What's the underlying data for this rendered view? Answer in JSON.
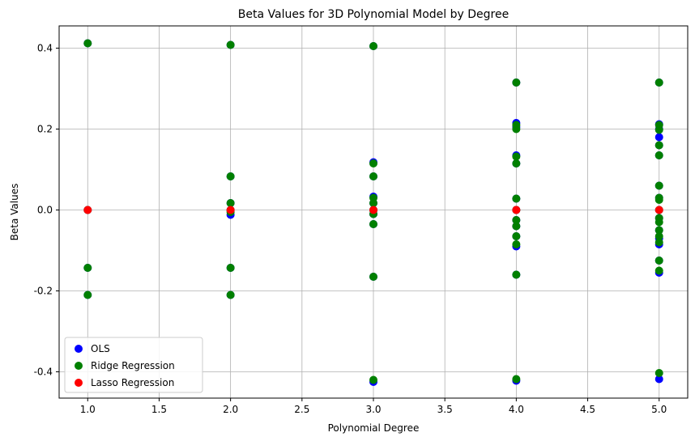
{
  "chart_data": {
    "type": "scatter",
    "title": "Beta Values for 3D Polynomial Model by Degree",
    "xlabel": "Polynomial Degree",
    "ylabel": "Beta Values",
    "xlim": [
      0.8,
      5.2
    ],
    "ylim": [
      -0.465,
      0.455
    ],
    "xticks": [
      "1.0",
      "1.5",
      "2.0",
      "2.5",
      "3.0",
      "3.5",
      "4.0",
      "4.5",
      "5.0"
    ],
    "yticks": [
      "-0.4",
      "-0.2",
      "0.0",
      "0.2",
      "0.4"
    ],
    "grid": true,
    "legend_position": "lower-left",
    "series": [
      {
        "name": "OLS",
        "color": "#0000ff",
        "points": [
          [
            1,
            0.412
          ],
          [
            1,
            0.0
          ],
          [
            1,
            -0.143
          ],
          [
            1,
            -0.21
          ],
          [
            2,
            0.408
          ],
          [
            2,
            0.083
          ],
          [
            2,
            0.017
          ],
          [
            2,
            0.0
          ],
          [
            2,
            -0.012
          ],
          [
            2,
            -0.143
          ],
          [
            2,
            -0.21
          ],
          [
            3,
            0.405
          ],
          [
            3,
            0.118
          ],
          [
            3,
            0.083
          ],
          [
            3,
            0.033
          ],
          [
            3,
            0.017
          ],
          [
            3,
            0.0
          ],
          [
            3,
            -0.01
          ],
          [
            3,
            -0.035
          ],
          [
            3,
            -0.165
          ],
          [
            3,
            -0.425
          ],
          [
            4,
            0.315
          ],
          [
            4,
            0.215
          ],
          [
            4,
            0.205
          ],
          [
            4,
            0.135
          ],
          [
            4,
            0.115
          ],
          [
            4,
            0.028
          ],
          [
            4,
            0.0
          ],
          [
            4,
            -0.025
          ],
          [
            4,
            -0.04
          ],
          [
            4,
            -0.065
          ],
          [
            4,
            -0.09
          ],
          [
            4,
            -0.16
          ],
          [
            4,
            -0.422
          ],
          [
            5,
            0.315
          ],
          [
            5,
            0.212
          ],
          [
            5,
            0.2
          ],
          [
            5,
            0.18
          ],
          [
            5,
            0.16
          ],
          [
            5,
            0.135
          ],
          [
            5,
            0.06
          ],
          [
            5,
            0.03
          ],
          [
            5,
            0.0
          ],
          [
            5,
            -0.02
          ],
          [
            5,
            -0.05
          ],
          [
            5,
            -0.07
          ],
          [
            5,
            -0.085
          ],
          [
            5,
            -0.125
          ],
          [
            5,
            -0.155
          ],
          [
            5,
            -0.418
          ]
        ]
      },
      {
        "name": "Ridge Regression",
        "color": "#008000",
        "points": [
          [
            1,
            0.412
          ],
          [
            1,
            0.0
          ],
          [
            1,
            -0.143
          ],
          [
            1,
            -0.21
          ],
          [
            2,
            0.408
          ],
          [
            2,
            0.083
          ],
          [
            2,
            0.017
          ],
          [
            2,
            0.0
          ],
          [
            2,
            -0.005
          ],
          [
            2,
            -0.143
          ],
          [
            2,
            -0.21
          ],
          [
            3,
            0.405
          ],
          [
            3,
            0.115
          ],
          [
            3,
            0.083
          ],
          [
            3,
            0.03
          ],
          [
            3,
            0.017
          ],
          [
            3,
            0.0
          ],
          [
            3,
            -0.01
          ],
          [
            3,
            -0.035
          ],
          [
            3,
            -0.165
          ],
          [
            3,
            -0.42
          ],
          [
            4,
            0.315
          ],
          [
            4,
            0.21
          ],
          [
            4,
            0.2
          ],
          [
            4,
            0.132
          ],
          [
            4,
            0.115
          ],
          [
            4,
            0.028
          ],
          [
            4,
            0.0
          ],
          [
            4,
            -0.025
          ],
          [
            4,
            -0.04
          ],
          [
            4,
            -0.065
          ],
          [
            4,
            -0.085
          ],
          [
            4,
            -0.16
          ],
          [
            4,
            -0.418
          ],
          [
            5,
            0.315
          ],
          [
            5,
            0.21
          ],
          [
            5,
            0.198
          ],
          [
            5,
            0.16
          ],
          [
            5,
            0.135
          ],
          [
            5,
            0.06
          ],
          [
            5,
            0.03
          ],
          [
            5,
            0.025
          ],
          [
            5,
            0.0
          ],
          [
            5,
            -0.02
          ],
          [
            5,
            -0.03
          ],
          [
            5,
            -0.05
          ],
          [
            5,
            -0.065
          ],
          [
            5,
            -0.08
          ],
          [
            5,
            -0.125
          ],
          [
            5,
            -0.15
          ],
          [
            5,
            -0.403
          ]
        ]
      },
      {
        "name": "Lasso Regression",
        "color": "#ff0000",
        "points": [
          [
            1,
            0.0
          ],
          [
            2,
            0.0
          ],
          [
            3,
            0.0
          ],
          [
            4,
            0.0
          ],
          [
            5,
            0.0
          ]
        ]
      }
    ]
  }
}
